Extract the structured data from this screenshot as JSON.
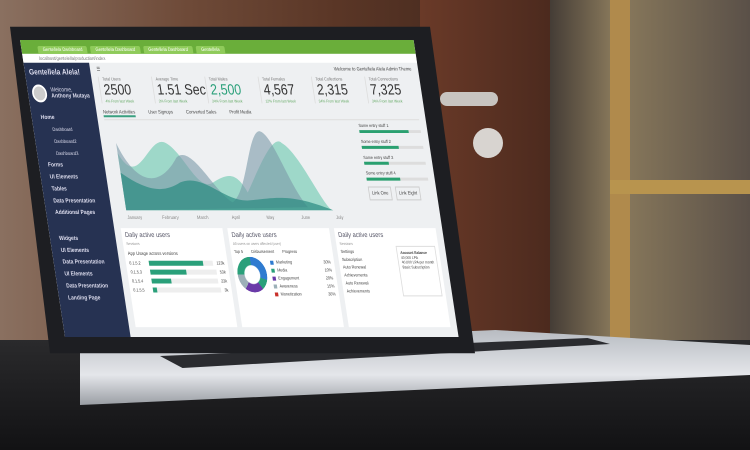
{
  "browser": {
    "tabs": [
      "Gentellela Dashboard",
      "Gentellela Dashboard",
      "Gentellela Dashboard",
      "Gentellela"
    ],
    "url": "localhost/gentelella/production/index"
  },
  "sidebar": {
    "brand": "Gentellela Alela!",
    "welcome": "Welcome,",
    "user": "Anthony Mutaya",
    "items": [
      "Home",
      "Dashboard",
      "Dashboard2",
      "Dashboard3",
      "Forms",
      "UI Elements",
      "Tables",
      "Data Presentation",
      "Additional Pages",
      "Widgets",
      "UI Elements",
      "Data Presentation",
      "UI Elements",
      "Data Presentation",
      "Landing Page"
    ]
  },
  "header": {
    "welcome": "Welcome to Gentellela Alela Admin Theme"
  },
  "stats": [
    {
      "label": "Total Users",
      "value": "2500",
      "sub": "4% From last Week"
    },
    {
      "label": "Average Time",
      "value": "1.51 Sec",
      "sub": "3% From last Week"
    },
    {
      "label": "Total Males",
      "value": "2,500",
      "sub": "34% From last Week"
    },
    {
      "label": "Total Females",
      "value": "4,567",
      "sub": "12% From last Week"
    },
    {
      "label": "Total Collections",
      "value": "2,315",
      "sub": "34% From last Week"
    },
    {
      "label": "Total Connections",
      "value": "7,325",
      "sub": "34% From last Week"
    }
  ],
  "tabs": [
    "Network Activities",
    "User Signups",
    "Converted Sales",
    "Profit Media"
  ],
  "chart_months": [
    "January",
    "February",
    "March",
    "April",
    "May",
    "June",
    "July"
  ],
  "side_bars": [
    {
      "label": "Some entry stuff 1",
      "pct": 80
    },
    {
      "label": "Some entry stuff 2",
      "pct": 60
    },
    {
      "label": "Some entry stuff 3",
      "pct": 40
    },
    {
      "label": "Some entry stuff 4",
      "pct": 55
    }
  ],
  "links": [
    "Link One",
    "Link Eight"
  ],
  "panels": {
    "title": "Daily active users",
    "sub": "Sessions",
    "note": "All users on users affected (user)",
    "usage": {
      "title": "App Usage across versions",
      "rows": [
        {
          "label": "0.1.5.2",
          "value": "123k",
          "pct": 85
        },
        {
          "label": "0.1.5.3",
          "value": "53k",
          "pct": 55
        },
        {
          "label": "0.1.5.4",
          "value": "23k",
          "pct": 30
        },
        {
          "label": "0.1.5.5",
          "value": "3k",
          "pct": 6
        }
      ]
    },
    "donut": {
      "headers": [
        "Top 5",
        "Disbursement",
        "Progress"
      ],
      "items": [
        {
          "name": "Marketing",
          "pct": "30%",
          "color": "#2f7bd0"
        },
        {
          "name": "Media",
          "pct": "10%",
          "color": "#2aa07a"
        },
        {
          "name": "Engagement",
          "pct": "20%",
          "color": "#6a3aa8"
        },
        {
          "name": "Awareness",
          "pct": "15%",
          "color": "#9cb0b8"
        },
        {
          "name": "Monetization",
          "pct": "30%",
          "color": "#c8302a"
        }
      ]
    },
    "settings": {
      "items": [
        "Settings",
        "Subscription",
        "Auto Renewal",
        "Achievements",
        "Auto Renewal",
        "Achievements"
      ],
      "balance_title": "Account Balance",
      "balance_lines": [
        "40,000 LPA",
        "40,000 LPA per month",
        "Basic Subscription"
      ]
    }
  }
}
